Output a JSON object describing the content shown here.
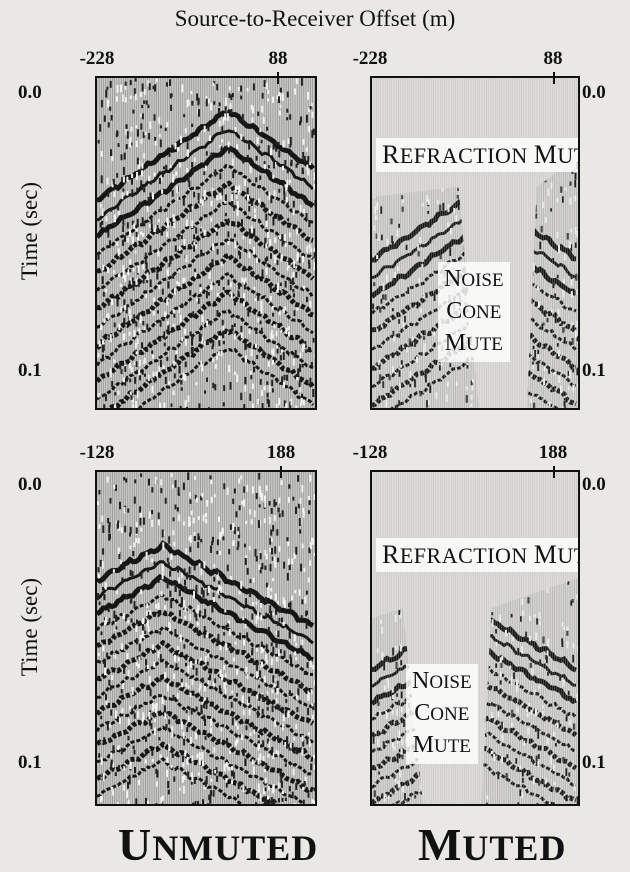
{
  "figure": {
    "top_title": "Source-to-Receiver Offset (m)",
    "y_axis_label": "Time (sec)",
    "time_top": "0.0",
    "time_bottom": "0.1",
    "rows": [
      {
        "offset_left": "-228",
        "offset_right": "88"
      },
      {
        "offset_left": "-128",
        "offset_right": "188"
      }
    ],
    "mute_labels": {
      "refraction": "Refraction Mute",
      "noise_line1": "Noise",
      "noise_line2": "Cone",
      "noise_line3": "Mute"
    },
    "columns": {
      "left": "Unmuted",
      "right": "Muted"
    }
  }
}
